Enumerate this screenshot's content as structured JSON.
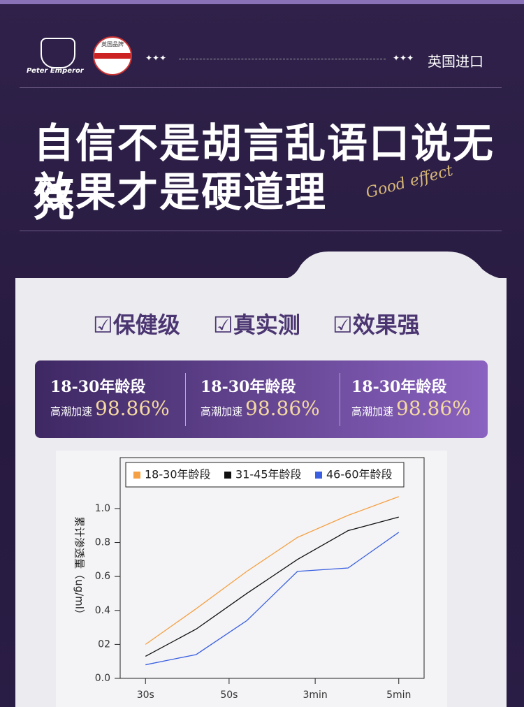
{
  "header": {
    "brand": "Peter Emperor",
    "badge": "英国品牌",
    "origin": "英国进口"
  },
  "headline": {
    "line1": "自信不是胡言乱语口说无凭",
    "line2": "效果才是硬道理",
    "script": "Good effect"
  },
  "features": [
    "保健级",
    "真实测",
    "效果强"
  ],
  "stats": [
    {
      "group": "18-30年龄段",
      "label": "高潮加速",
      "value": "98.86%"
    },
    {
      "group": "18-30年龄段",
      "label": "高潮加速",
      "value": "98.86%"
    },
    {
      "group": "18-30年龄段",
      "label": "高潮加速",
      "value": "98.86%"
    }
  ],
  "chart_data": {
    "type": "line",
    "y_label": "累计渗透量（ug/ml）",
    "x": [
      1,
      3,
      5,
      7,
      9,
      11
    ],
    "xlim": [
      0,
      12
    ],
    "xticks": [
      {
        "value": 1,
        "label": "30s"
      },
      {
        "value": 4.3,
        "label": "50s"
      },
      {
        "value": 7.7,
        "label": "3min"
      },
      {
        "value": 11,
        "label": "5min"
      }
    ],
    "ylim": [
      0,
      1.3
    ],
    "yticks": [
      {
        "value": 0,
        "label": "0.0"
      },
      {
        "value": 0.2,
        "label": "02"
      },
      0.4,
      0.6,
      0.8,
      {
        "value": 1,
        "label": "1.0"
      }
    ],
    "series": [
      {
        "name": "18-30年龄段",
        "color": "#f5a043",
        "values": [
          0.2,
          0.41,
          0.63,
          0.83,
          0.96,
          1.07
        ]
      },
      {
        "name": "31-45年龄段",
        "color": "#111111",
        "values": [
          0.13,
          0.29,
          0.5,
          0.7,
          0.87,
          0.95
        ]
      },
      {
        "name": "46-60年龄段",
        "color": "#3a5fe0",
        "values": [
          0.08,
          0.14,
          0.34,
          0.63,
          0.65,
          0.86
        ]
      }
    ]
  }
}
